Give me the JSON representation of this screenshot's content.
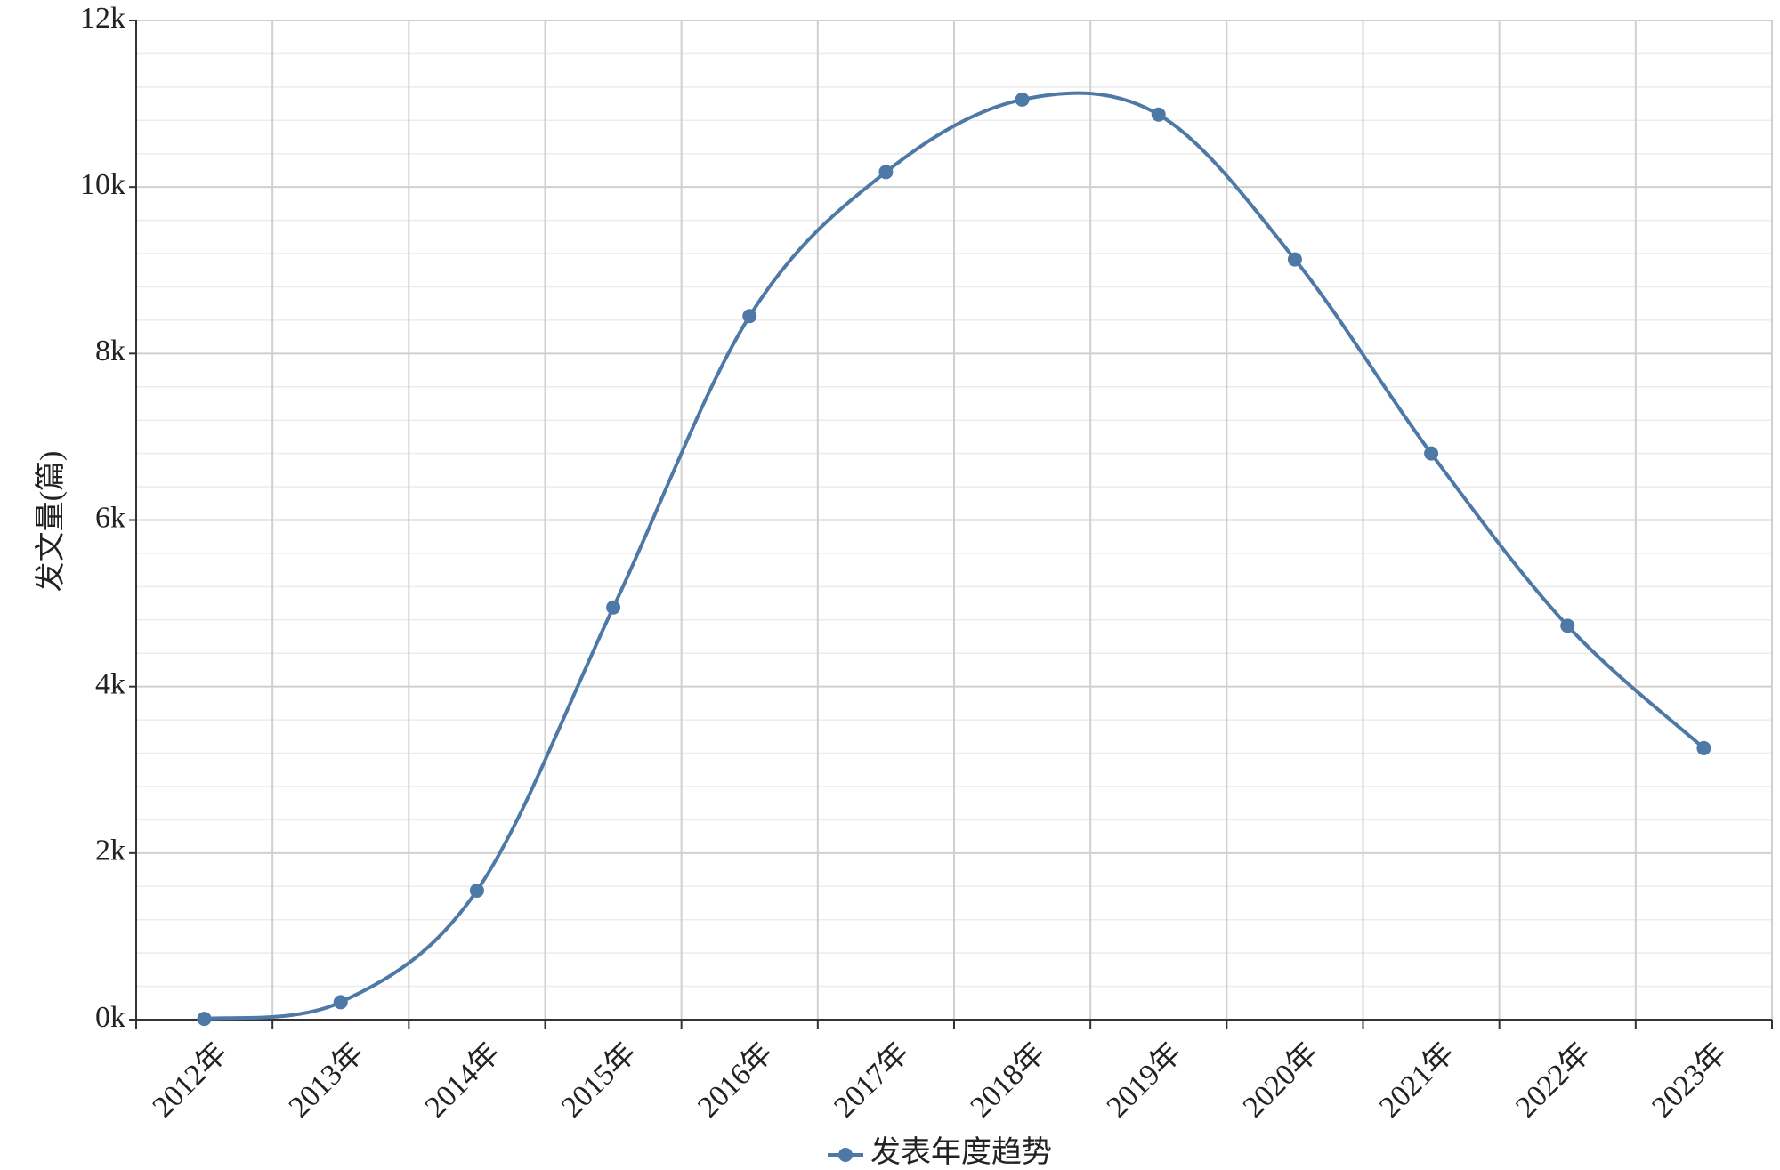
{
  "chart_data": {
    "type": "line",
    "y_label": "发文量(篇)",
    "categories": [
      "2012年",
      "2013年",
      "2014年",
      "2015年",
      "2016年",
      "2017年",
      "2018年",
      "2019年",
      "2020年",
      "2021年",
      "2022年",
      "2023年"
    ],
    "series": [
      {
        "name": "发表年度趋势",
        "color": "#4e79a7",
        "values": [
          10,
          210,
          1550,
          4950,
          8450,
          10180,
          11050,
          10870,
          9130,
          6800,
          4730,
          3260
        ]
      }
    ],
    "ylim": [
      0,
      12000
    ],
    "yticks": [
      {
        "value": 0,
        "label": "0k"
      },
      {
        "value": 2000,
        "label": "2k"
      },
      {
        "value": 4000,
        "label": "4k"
      },
      {
        "value": 6000,
        "label": "6k"
      },
      {
        "value": 8000,
        "label": "8k"
      },
      {
        "value": 10000,
        "label": "10k"
      },
      {
        "value": 12000,
        "label": "12k"
      }
    ],
    "grid": true,
    "smooth": true,
    "legend": "bottom"
  }
}
